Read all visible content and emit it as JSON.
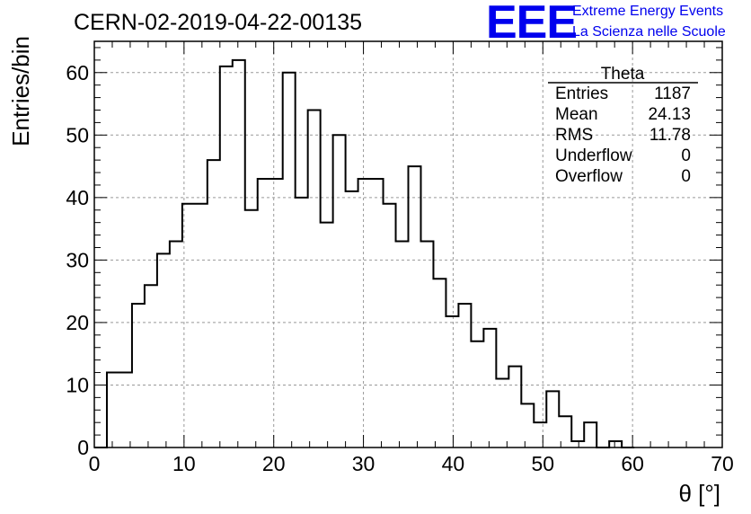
{
  "title": "CERN-02-2019-04-22-00135",
  "logo": {
    "letters": "EEE",
    "line1": "Extreme Energy Events",
    "line2": "La Scienza nelle Scuole",
    "color": "#0000ee"
  },
  "stats": {
    "name": "Theta",
    "rows": [
      {
        "label": "Entries",
        "value": "1187"
      },
      {
        "label": "Mean",
        "value": "24.13"
      },
      {
        "label": "RMS",
        "value": "11.78"
      },
      {
        "label": "Underflow",
        "value": "0"
      },
      {
        "label": "Overflow",
        "value": "0"
      }
    ]
  },
  "chart_data": {
    "type": "bar",
    "histogram": true,
    "xlabel": "θ [°]",
    "ylabel": "Entries/bin",
    "xlim": [
      0,
      70
    ],
    "ylim": [
      0,
      65
    ],
    "grid": true,
    "x_ticks": [
      0,
      10,
      20,
      30,
      40,
      50,
      60,
      70
    ],
    "y_ticks": [
      0,
      10,
      20,
      30,
      40,
      50,
      60
    ],
    "bin_edges": [
      0,
      1.4,
      2.8,
      4.2,
      5.6,
      7.0,
      8.4,
      9.8,
      11.2,
      12.6,
      14.0,
      15.4,
      16.8,
      18.2,
      19.6,
      21.0,
      22.4,
      23.8,
      25.2,
      26.6,
      28.0,
      29.4,
      30.8,
      32.2,
      33.6,
      35.0,
      36.4,
      37.8,
      39.2,
      40.6,
      42.0,
      43.4,
      44.8,
      46.2,
      47.6,
      49.0,
      50.4,
      51.8,
      53.2,
      54.6,
      56.0,
      57.4,
      58.8,
      60.2
    ],
    "values": [
      0,
      12,
      12,
      23,
      26,
      31,
      33,
      39,
      39,
      46,
      61,
      62,
      38,
      43,
      43,
      60,
      40,
      54,
      36,
      50,
      41,
      43,
      43,
      39,
      33,
      45,
      33,
      27,
      21,
      23,
      17,
      19,
      11,
      13,
      7,
      4,
      9,
      5,
      1,
      4,
      0,
      1,
      0
    ]
  }
}
